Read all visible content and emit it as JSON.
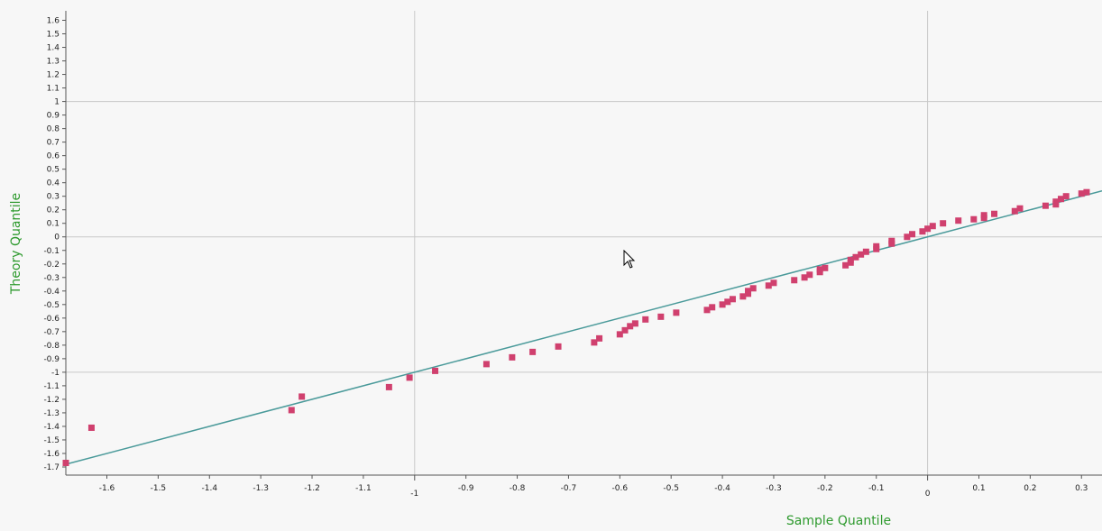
{
  "chart_data": {
    "type": "scatter",
    "xlabel": "Sample Quantile",
    "ylabel": "Theory Quantile",
    "xlim": [
      -1.68,
      0.34
    ],
    "ylim": [
      -1.76,
      1.67
    ],
    "x_ticks": [
      -1.6,
      -1.5,
      -1.4,
      -1.3,
      -1.2,
      -1.1,
      -1,
      -0.9,
      -0.8,
      -0.7,
      -0.6,
      -0.5,
      -0.4,
      -0.3,
      -0.2,
      -0.1,
      0,
      0.1,
      0.2,
      0.3
    ],
    "x_tick_labels": [
      "-1.6",
      "-1.5",
      "-1.4",
      "-1.3",
      "-1.2",
      "-1.1",
      "-1",
      "-0.9",
      "-0.8",
      "-0.7",
      "-0.6",
      "-0.5",
      "-0.4",
      "-0.3",
      "-0.2",
      "-0.1",
      "0",
      "0.1",
      "0.2",
      "0.3"
    ],
    "y_ticks": [
      1.6,
      1.5,
      1.4,
      1.3,
      1.2,
      1.1,
      1,
      0.9,
      0.8,
      0.7,
      0.6,
      0.5,
      0.4,
      0.3,
      0.2,
      0.1,
      0,
      -0.1,
      -0.2,
      -0.3,
      -0.4,
      -0.5,
      -0.6,
      -0.7,
      -0.8,
      -0.9,
      -1,
      -1.1,
      -1.2,
      -1.3,
      -1.4,
      -1.5,
      -1.6,
      -1.7
    ],
    "y_tick_labels": [
      "1.6",
      "1.5",
      "1.4",
      "1.3",
      "1.2",
      "1.1",
      "1",
      "0.9",
      "0.8",
      "0.7",
      "0.6",
      "0.5",
      "0.4",
      "0.3",
      "0.2",
      "0.1",
      "0",
      "-0.1",
      "-0.2",
      "-0.3",
      "-0.4",
      "-0.5",
      "-0.6",
      "-0.7",
      "-0.8",
      "-0.9",
      "-1",
      "-1.1",
      "-1.2",
      "-1.3",
      "-1.4",
      "-1.5",
      "-1.6",
      "-1.7"
    ],
    "grid_x": [
      -1,
      0
    ],
    "grid_y": [
      1,
      0,
      -1
    ],
    "reference_line": {
      "slope": 1,
      "intercept": 0,
      "color": "#4a9a9a"
    },
    "marker_color": "#d0406e",
    "points": [
      [
        -1.68,
        -1.67
      ],
      [
        -1.63,
        -1.41
      ],
      [
        -1.24,
        -1.28
      ],
      [
        -1.22,
        -1.18
      ],
      [
        -1.05,
        -1.11
      ],
      [
        -1.01,
        -1.04
      ],
      [
        -0.96,
        -0.99
      ],
      [
        -0.86,
        -0.94
      ],
      [
        -0.81,
        -0.89
      ],
      [
        -0.77,
        -0.85
      ],
      [
        -0.72,
        -0.81
      ],
      [
        -0.65,
        -0.78
      ],
      [
        -0.64,
        -0.75
      ],
      [
        -0.6,
        -0.72
      ],
      [
        -0.59,
        -0.69
      ],
      [
        -0.58,
        -0.66
      ],
      [
        -0.57,
        -0.64
      ],
      [
        -0.55,
        -0.61
      ],
      [
        -0.52,
        -0.59
      ],
      [
        -0.49,
        -0.56
      ],
      [
        -0.43,
        -0.54
      ],
      [
        -0.42,
        -0.52
      ],
      [
        -0.4,
        -0.5
      ],
      [
        -0.39,
        -0.48
      ],
      [
        -0.38,
        -0.46
      ],
      [
        -0.36,
        -0.44
      ],
      [
        -0.35,
        -0.42
      ],
      [
        -0.35,
        -0.4
      ],
      [
        -0.34,
        -0.38
      ],
      [
        -0.31,
        -0.36
      ],
      [
        -0.3,
        -0.34
      ],
      [
        -0.26,
        -0.32
      ],
      [
        -0.24,
        -0.3
      ],
      [
        -0.23,
        -0.28
      ],
      [
        -0.21,
        -0.26
      ],
      [
        -0.21,
        -0.24
      ],
      [
        -0.2,
        -0.23
      ],
      [
        -0.16,
        -0.21
      ],
      [
        -0.15,
        -0.19
      ],
      [
        -0.15,
        -0.17
      ],
      [
        -0.14,
        -0.15
      ],
      [
        -0.13,
        -0.13
      ],
      [
        -0.12,
        -0.11
      ],
      [
        -0.1,
        -0.09
      ],
      [
        -0.1,
        -0.07
      ],
      [
        -0.07,
        -0.05
      ],
      [
        -0.07,
        -0.03
      ],
      [
        -0.04,
        0.0
      ],
      [
        -0.03,
        0.02
      ],
      [
        -0.01,
        0.04
      ],
      [
        0.0,
        0.06
      ],
      [
        0.01,
        0.08
      ],
      [
        0.03,
        0.1
      ],
      [
        0.06,
        0.12
      ],
      [
        0.09,
        0.13
      ],
      [
        0.11,
        0.14
      ],
      [
        0.11,
        0.16
      ],
      [
        0.13,
        0.17
      ],
      [
        0.17,
        0.19
      ],
      [
        0.18,
        0.21
      ],
      [
        0.23,
        0.23
      ],
      [
        0.25,
        0.24
      ],
      [
        0.25,
        0.26
      ],
      [
        0.26,
        0.28
      ],
      [
        0.27,
        0.3
      ],
      [
        0.3,
        0.32
      ],
      [
        0.31,
        0.33
      ]
    ]
  }
}
